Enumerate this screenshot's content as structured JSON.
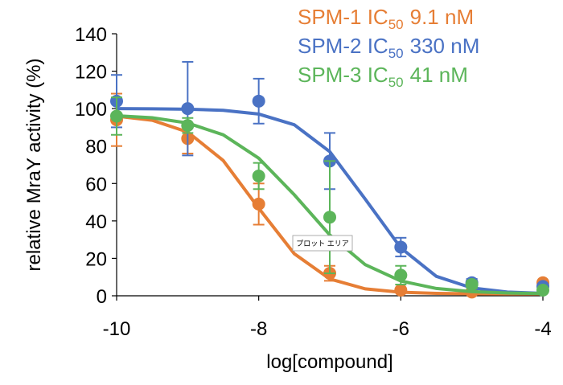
{
  "chart_data": {
    "type": "scatter",
    "x_label": "log[compound]",
    "y_label": "relative MraY activity (%)",
    "xlim": [
      -10,
      -4
    ],
    "xticks": [
      -10,
      -8,
      -6,
      -4
    ],
    "ylim": [
      0,
      140
    ],
    "yticks": [
      0,
      20,
      40,
      60,
      80,
      100,
      120,
      140
    ],
    "x": [
      -10,
      -9,
      -8,
      -7,
      -6,
      -5,
      -4
    ],
    "fit_x": [
      -10,
      -9.5,
      -9,
      -8.5,
      -8,
      -7.5,
      -7,
      -6.5,
      -6,
      -5.5,
      -5,
      -4.5,
      -4
    ],
    "tooltip": "プロット エリア",
    "series": [
      {
        "name": "SPM-1",
        "ic50_text": "IC",
        "ic50_sub": "50",
        "ic50_value": "9.1 nM",
        "color": "#e67e35",
        "values": [
          94,
          84,
          49,
          12,
          3,
          2,
          7
        ],
        "errors": [
          14,
          8,
          11,
          4,
          1,
          1,
          1
        ],
        "fit_values": [
          96.0,
          93.8,
          87.5,
          72.3,
          46.8,
          22.5,
          9.0,
          3.7,
          1.9,
          1.3,
          1.1,
          1.0,
          1.0
        ]
      },
      {
        "name": "SPM-2",
        "ic50_text": "IC",
        "ic50_sub": "50",
        "ic50_value": "330 nM",
        "color": "#4a72c4",
        "values": [
          104,
          100,
          104,
          72,
          26,
          7,
          5
        ],
        "errors": [
          14,
          25,
          12,
          15,
          5,
          2,
          1
        ],
        "fit_values": [
          100,
          99.9,
          99.7,
          99.1,
          97.1,
          91.4,
          77.0,
          51.6,
          25.6,
          10.4,
          4.2,
          2.0,
          1.3
        ]
      },
      {
        "name": "SPM-3",
        "ic50_text": "IC",
        "ic50_sub": "50",
        "ic50_value": "41 nM",
        "color": "#5cb55a",
        "values": [
          96,
          91,
          64,
          42,
          11,
          6,
          3
        ],
        "errors": [
          10,
          4,
          7,
          30,
          5,
          2,
          1
        ],
        "fit_values": [
          96.2,
          95.1,
          92.3,
          86.0,
          73.5,
          54.0,
          32.5,
          16.6,
          7.9,
          3.9,
          2.2,
          1.5,
          1.2
        ]
      }
    ]
  }
}
